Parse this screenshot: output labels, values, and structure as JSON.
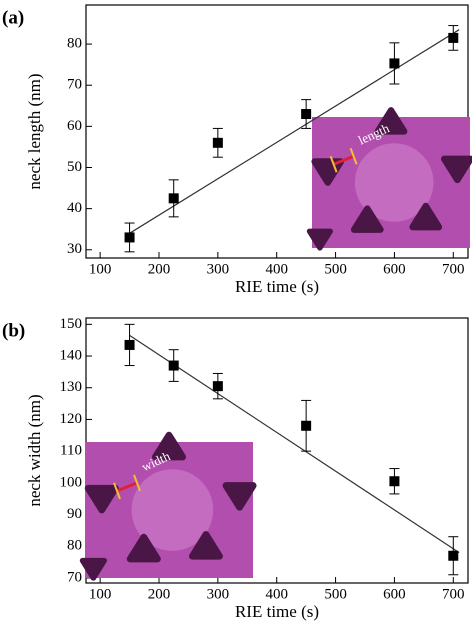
{
  "chart_data": [
    {
      "type": "scatter",
      "panel_label": "(a)",
      "x_label": "RIE time (s)",
      "y_label": "neck length (nm)",
      "inset_label": "length",
      "x": [
        150,
        225,
        300,
        450,
        600,
        700
      ],
      "values": [
        33,
        42.5,
        56,
        63,
        75.3,
        81.5
      ],
      "errors": [
        3.5,
        4.5,
        3.5,
        3.5,
        5,
        3
      ],
      "fit": {
        "x": [
          150,
          710
        ],
        "y": [
          34,
          83.5
        ]
      },
      "color": "#000000",
      "xlim": [
        76,
        725
      ],
      "ylim": [
        28,
        89.5
      ],
      "xticks": [
        100,
        200,
        300,
        400,
        500,
        600,
        700
      ],
      "yticks": [
        30,
        40,
        50,
        60,
        70,
        80
      ]
    },
    {
      "type": "scatter",
      "panel_label": "(b)",
      "x_label": "RIE time (s)",
      "y_label": "neck width (nm)",
      "inset_label": "width",
      "x": [
        150,
        225,
        300,
        450,
        600,
        700
      ],
      "values": [
        143.5,
        137,
        130.5,
        118,
        100.5,
        77
      ],
      "errors": [
        6.5,
        5,
        4,
        8,
        4,
        6
      ],
      "fit": {
        "x": [
          150,
          710
        ],
        "y": [
          146.5,
          78
        ]
      },
      "color": "#000000",
      "xlim": [
        76,
        725
      ],
      "ylim": [
        68.4,
        152
      ],
      "xticks": [
        100,
        200,
        300,
        400,
        500,
        600,
        700
      ],
      "yticks": [
        70,
        80,
        90,
        100,
        110,
        120,
        130,
        140,
        150
      ]
    }
  ]
}
